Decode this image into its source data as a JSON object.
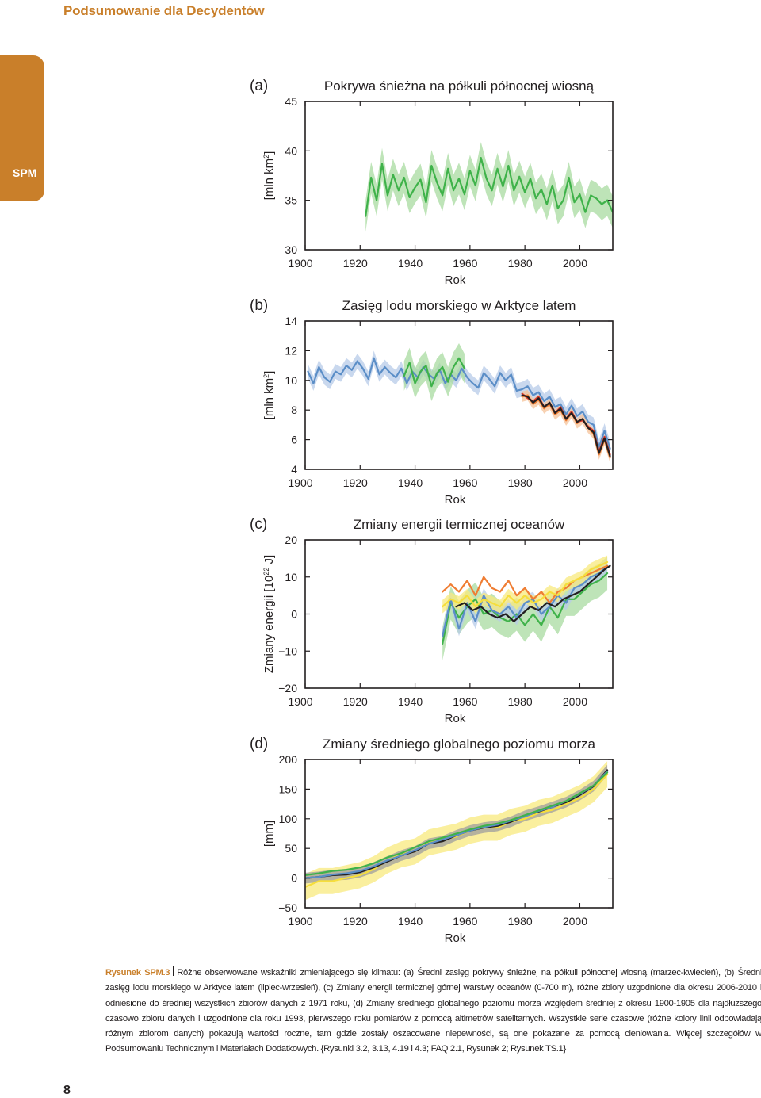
{
  "header": {
    "title": "Podsumowanie dla Decydentów"
  },
  "side_tab": {
    "label": "SPM",
    "color": "#c97f2a"
  },
  "page_number": "8",
  "caption": {
    "label": "Rysunek SPM.3",
    "text": "Różne obserwowane wskaźniki zmieniającego się klimatu: (a) Średni zasięg pokrywy śnieżnej na półkuli północnej wiosną (marzec-kwiecień), (b) Średni zasięg lodu morskiego w Arktyce latem (lipiec-wrzesień), (c) Zmiany energii termicznej górnej warstwy oceanów (0-700 m), różne zbiory uzgodnione dla okresu 2006-2010 i odniesione do średniej wszystkich zbiorów danych z 1971 roku, (d) Zmiany średniego globalnego poziomu morza względem średniej z okresu 1900-1905 dla najdłuższego czasowo zbioru danych i uzgodnione dla roku 1993, pierwszego roku pomiarów z pomocą altimetrów satelitarnych. Wszystkie serie czasowe (różne kolory linii odpowiadają różnym zbiorom danych) pokazują wartości roczne, tam gdzie zostały oszacowane niepewności, są one pokazane za pomocą cieniowania. Więcej szczegółów w Podsumowaniu Technicznym i Materiałach Dodatkowych. {Rysunki 3.2, 3.13, 4.19 i 4.3; FAQ 2.1, Rysunek 2; Rysunek TS.1}"
  },
  "colors": {
    "green": "#3fb24a",
    "green_band": "#a8dba0",
    "blue": "#5b8ec7",
    "blue_band": "#b7cbe8",
    "red": "#d83a2b",
    "orange": "#ef7d33",
    "orange_band": "#f5c39a",
    "black": "#231f20",
    "gray_band": "#9d9d9d",
    "yellow": "#f6de3c",
    "yellow_band": "#f8ea7e"
  },
  "chart_data": [
    {
      "type": "line",
      "panel_label": "(a)",
      "title": "Pokrywa śnieżna na półkuli północnej wiosną",
      "xlabel": "Rok",
      "ylabel": "[mln km²]",
      "xlim": [
        1900,
        2012
      ],
      "ylim": [
        30,
        45
      ],
      "xticks": [
        1900,
        1920,
        1940,
        1960,
        1980,
        2000
      ],
      "yticks": [
        30,
        35,
        40,
        45
      ],
      "series": [
        {
          "color": "green",
          "band": "green_band",
          "band_width": 1.6,
          "x": [
            1922,
            1924,
            1926,
            1928,
            1930,
            1932,
            1934,
            1936,
            1938,
            1940,
            1942,
            1944,
            1946,
            1948,
            1950,
            1952,
            1954,
            1956,
            1958,
            1960,
            1962,
            1964,
            1966,
            1968,
            1970,
            1972,
            1974,
            1976,
            1978,
            1980,
            1982,
            1984,
            1986,
            1988,
            1990,
            1992,
            1994,
            1996,
            1998,
            2000,
            2002,
            2004,
            2006,
            2008,
            2010,
            2012
          ],
          "y": [
            33.4,
            37.3,
            35.0,
            38.7,
            35.5,
            37.6,
            36.0,
            37.3,
            35.3,
            36.3,
            37.1,
            34.8,
            38.5,
            36.8,
            35.5,
            38.2,
            36.0,
            37.2,
            35.6,
            38.0,
            36.5,
            39.3,
            37.2,
            36.0,
            38.2,
            36.4,
            38.5,
            36.0,
            37.4,
            35.8,
            37.2,
            35.2,
            36.1,
            34.6,
            36.5,
            34.2,
            35.0,
            37.3,
            34.8,
            35.6,
            33.8,
            35.5,
            35.2,
            34.6,
            35.0,
            33.8
          ]
        }
      ]
    },
    {
      "type": "line",
      "panel_label": "(b)",
      "title": "Zasięg lodu morskiego w Arktyce latem",
      "xlabel": "Rok",
      "ylabel": "[mln km²]",
      "xlim": [
        1900,
        2012
      ],
      "ylim": [
        4,
        14
      ],
      "xticks": [
        1900,
        1920,
        1940,
        1960,
        1980,
        2000
      ],
      "yticks": [
        4,
        6,
        8,
        10,
        12,
        14
      ],
      "series": [
        {
          "color": "blue",
          "band": "blue_band",
          "band_width": 0.5,
          "x": [
            1901,
            1903,
            1905,
            1907,
            1909,
            1911,
            1913,
            1915,
            1917,
            1919,
            1921,
            1923,
            1925,
            1927,
            1929,
            1931,
            1933,
            1935,
            1937,
            1939,
            1941,
            1943,
            1945,
            1947,
            1949,
            1951,
            1953,
            1955,
            1957,
            1959,
            1961,
            1963,
            1965,
            1967,
            1969,
            1971,
            1973,
            1975,
            1977,
            1979,
            1981,
            1983,
            1985,
            1987,
            1989,
            1991,
            1993,
            1995,
            1997,
            1999,
            2001,
            2003,
            2005,
            2007,
            2009,
            2011
          ],
          "y": [
            10.6,
            9.8,
            10.9,
            10.2,
            9.9,
            10.6,
            10.4,
            11.0,
            10.7,
            11.3,
            10.8,
            10.1,
            11.5,
            10.4,
            10.9,
            10.5,
            10.2,
            10.8,
            9.8,
            10.6,
            10.2,
            10.9,
            10.4,
            10.1,
            10.7,
            9.8,
            10.4,
            10.0,
            10.8,
            10.2,
            9.8,
            9.5,
            10.5,
            10.1,
            9.6,
            10.5,
            10.0,
            10.4,
            9.3,
            9.4,
            9.6,
            9.0,
            9.2,
            8.6,
            8.9,
            8.2,
            8.4,
            7.7,
            8.3,
            7.6,
            7.9,
            7.2,
            7.0,
            5.5,
            6.6,
            5.4
          ]
        },
        {
          "color": "green",
          "band": "green_band",
          "band_width": 1.0,
          "x": [
            1936,
            1938,
            1940,
            1942,
            1944,
            1946,
            1948,
            1950,
            1952,
            1954,
            1956,
            1958
          ],
          "y": [
            10.3,
            11.2,
            9.8,
            10.6,
            11.0,
            9.6,
            10.5,
            10.9,
            9.9,
            10.9,
            11.5,
            10.8
          ]
        },
        {
          "color": "orange",
          "band": "orange_band",
          "band_width": 0.35,
          "x": [
            1979,
            1981,
            1983,
            1985,
            1987,
            1989,
            1991,
            1993,
            1995,
            1997,
            1999,
            2001,
            2003,
            2005,
            2007,
            2009,
            2011
          ],
          "y": [
            8.9,
            9.0,
            8.4,
            8.7,
            8.1,
            8.4,
            7.7,
            8.0,
            7.3,
            7.8,
            7.1,
            7.4,
            6.8,
            6.4,
            5.0,
            6.0,
            4.8
          ]
        },
        {
          "color": "red",
          "band": "",
          "band_width": 0,
          "x": [
            1979,
            1981,
            1983,
            1985,
            1987,
            1989,
            1991,
            1993,
            1995,
            1997,
            1999,
            2001,
            2003,
            2005,
            2007,
            2009,
            2011
          ],
          "y": [
            9.1,
            8.8,
            8.6,
            8.9,
            8.2,
            8.5,
            7.8,
            8.2,
            7.4,
            7.9,
            7.2,
            7.3,
            6.9,
            6.6,
            5.2,
            6.2,
            5.0
          ]
        },
        {
          "color": "black",
          "band": "",
          "band_width": 0,
          "x": [
            1979,
            1981,
            1983,
            1985,
            1987,
            1989,
            1991,
            1993,
            1995,
            1997,
            1999,
            2001,
            2003,
            2005,
            2007,
            2009,
            2011
          ],
          "y": [
            9.0,
            8.9,
            8.5,
            8.8,
            8.2,
            8.5,
            7.8,
            8.1,
            7.4,
            7.8,
            7.2,
            7.4,
            6.8,
            6.5,
            5.1,
            6.1,
            4.9
          ]
        }
      ]
    },
    {
      "type": "line",
      "panel_label": "(c)",
      "title": "Zmiany energii termicznej oceanów",
      "xlabel": "Rok",
      "ylabel": "Zmiany energii [10²² J]",
      "xlim": [
        1900,
        2012
      ],
      "ylim": [
        -20,
        20
      ],
      "xticks": [
        1900,
        1920,
        1940,
        1960,
        1980,
        2000
      ],
      "yticks": [
        -20,
        -10,
        0,
        10,
        20
      ],
      "series": [
        {
          "color": "green",
          "band": "green_band",
          "band_width": 4.5,
          "x": [
            1950,
            1953,
            1956,
            1959,
            1962,
            1965,
            1968,
            1971,
            1974,
            1977,
            1980,
            1983,
            1986,
            1989,
            1992,
            1995,
            1998,
            2001,
            2004,
            2007,
            2010
          ],
          "y": [
            -8,
            3,
            -1,
            2,
            4,
            0,
            1,
            -1,
            -2,
            0,
            -3,
            0,
            -3,
            2,
            -1,
            4,
            4,
            6,
            8,
            9,
            11
          ]
        },
        {
          "color": "blue",
          "band": "blue_band",
          "band_width": 2.0,
          "x": [
            1950,
            1953,
            1956,
            1959,
            1962,
            1965,
            1968,
            1971,
            1974,
            1977,
            1980,
            1983,
            1986,
            1989,
            1992,
            1995,
            1998,
            2001,
            2004,
            2007,
            2010
          ],
          "y": [
            -6,
            4,
            -4,
            3,
            -2,
            5,
            1,
            0,
            2,
            -1,
            3,
            4,
            0,
            2,
            5,
            3,
            7,
            8,
            10,
            11,
            13
          ]
        },
        {
          "color": "orange",
          "band": "",
          "band_width": 0,
          "x": [
            1950,
            1953,
            1956,
            1959,
            1962,
            1965,
            1968,
            1971,
            1974,
            1977,
            1980,
            1983,
            1986,
            1989,
            1992,
            1995,
            1998,
            2001,
            2004,
            2007,
            2010
          ],
          "y": [
            6,
            8,
            6,
            9,
            5,
            10,
            7,
            6,
            9,
            5,
            7,
            4,
            6,
            3,
            6,
            7,
            9,
            10,
            11,
            12,
            13
          ]
        },
        {
          "color": "yellow",
          "band": "yellow_band",
          "band_width": 1.8,
          "x": [
            1950,
            1953,
            1956,
            1959,
            1962,
            1965,
            1968,
            1971,
            1974,
            1977,
            1980,
            1983,
            1986,
            1989,
            1992,
            1995,
            1998,
            2001,
            2004,
            2007,
            2010
          ],
          "y": [
            2,
            4,
            3,
            5,
            2,
            4,
            3,
            2,
            5,
            3,
            5,
            3,
            4,
            6,
            5,
            8,
            9,
            10,
            12,
            13,
            14
          ]
        },
        {
          "color": "black",
          "band": "",
          "band_width": 0,
          "x": [
            1955,
            1958,
            1961,
            1964,
            1967,
            1970,
            1973,
            1976,
            1979,
            1982,
            1985,
            1988,
            1991,
            1994,
            1997,
            2000,
            2003,
            2006,
            2009,
            2011
          ],
          "y": [
            2,
            3,
            1,
            2,
            0,
            -1,
            0,
            -2,
            0,
            2,
            1,
            3,
            2,
            4,
            5,
            6,
            8,
            10,
            12,
            13
          ]
        }
      ]
    },
    {
      "type": "line",
      "panel_label": "(d)",
      "title": "Zmiany średniego globalnego poziomu morza",
      "xlabel": "Rok",
      "ylabel": "[mm]",
      "xlim": [
        1900,
        2012
      ],
      "ylim": [
        -50,
        200
      ],
      "xticks": [
        1900,
        1920,
        1940,
        1960,
        1980,
        2000
      ],
      "yticks": [
        -50,
        0,
        50,
        100,
        150,
        200
      ],
      "series": [
        {
          "color": "yellow",
          "band": "yellow_band",
          "band_width": 22,
          "x": [
            1900,
            1905,
            1910,
            1915,
            1920,
            1925,
            1930,
            1935,
            1940,
            1945,
            1950,
            1955,
            1960,
            1965,
            1970,
            1975,
            1980,
            1985,
            1990,
            1995,
            2000,
            2005,
            2010
          ],
          "y": [
            -15,
            -5,
            -5,
            0,
            5,
            15,
            30,
            40,
            45,
            60,
            65,
            70,
            80,
            85,
            85,
            95,
            100,
            110,
            115,
            125,
            135,
            150,
            175
          ]
        },
        {
          "color": "black",
          "band": "gray_band",
          "band_width": 9,
          "x": [
            1900,
            1905,
            1910,
            1915,
            1920,
            1925,
            1930,
            1935,
            1940,
            1945,
            1950,
            1955,
            1960,
            1965,
            1970,
            1975,
            1980,
            1985,
            1990,
            1995,
            2000,
            2005,
            2010
          ],
          "y": [
            0,
            2,
            5,
            6,
            10,
            18,
            28,
            38,
            45,
            58,
            62,
            72,
            80,
            85,
            88,
            95,
            105,
            112,
            120,
            128,
            140,
            155,
            182
          ]
        },
        {
          "color": "blue",
          "band": "",
          "band_width": 0,
          "x": [
            1900,
            1905,
            1910,
            1915,
            1920,
            1925,
            1930,
            1935,
            1940,
            1945,
            1950,
            1955,
            1960,
            1965,
            1970,
            1975,
            1980,
            1985,
            1990,
            1995,
            2000,
            2005,
            2010
          ],
          "y": [
            0,
            2,
            6,
            8,
            12,
            20,
            30,
            38,
            47,
            58,
            65,
            72,
            80,
            86,
            90,
            97,
            104,
            113,
            120,
            130,
            142,
            156,
            180
          ]
        },
        {
          "color": "green",
          "band": "",
          "band_width": 0,
          "x": [
            1900,
            1905,
            1910,
            1915,
            1920,
            1925,
            1930,
            1935,
            1940,
            1945,
            1950,
            1955,
            1960,
            1965,
            1970,
            1975,
            1980,
            1985,
            1990,
            1995,
            2000,
            2005,
            2010
          ],
          "y": [
            5,
            8,
            12,
            14,
            18,
            25,
            35,
            42,
            52,
            62,
            68,
            75,
            82,
            88,
            92,
            98,
            106,
            114,
            122,
            130,
            143,
            156,
            178
          ]
        }
      ]
    }
  ]
}
